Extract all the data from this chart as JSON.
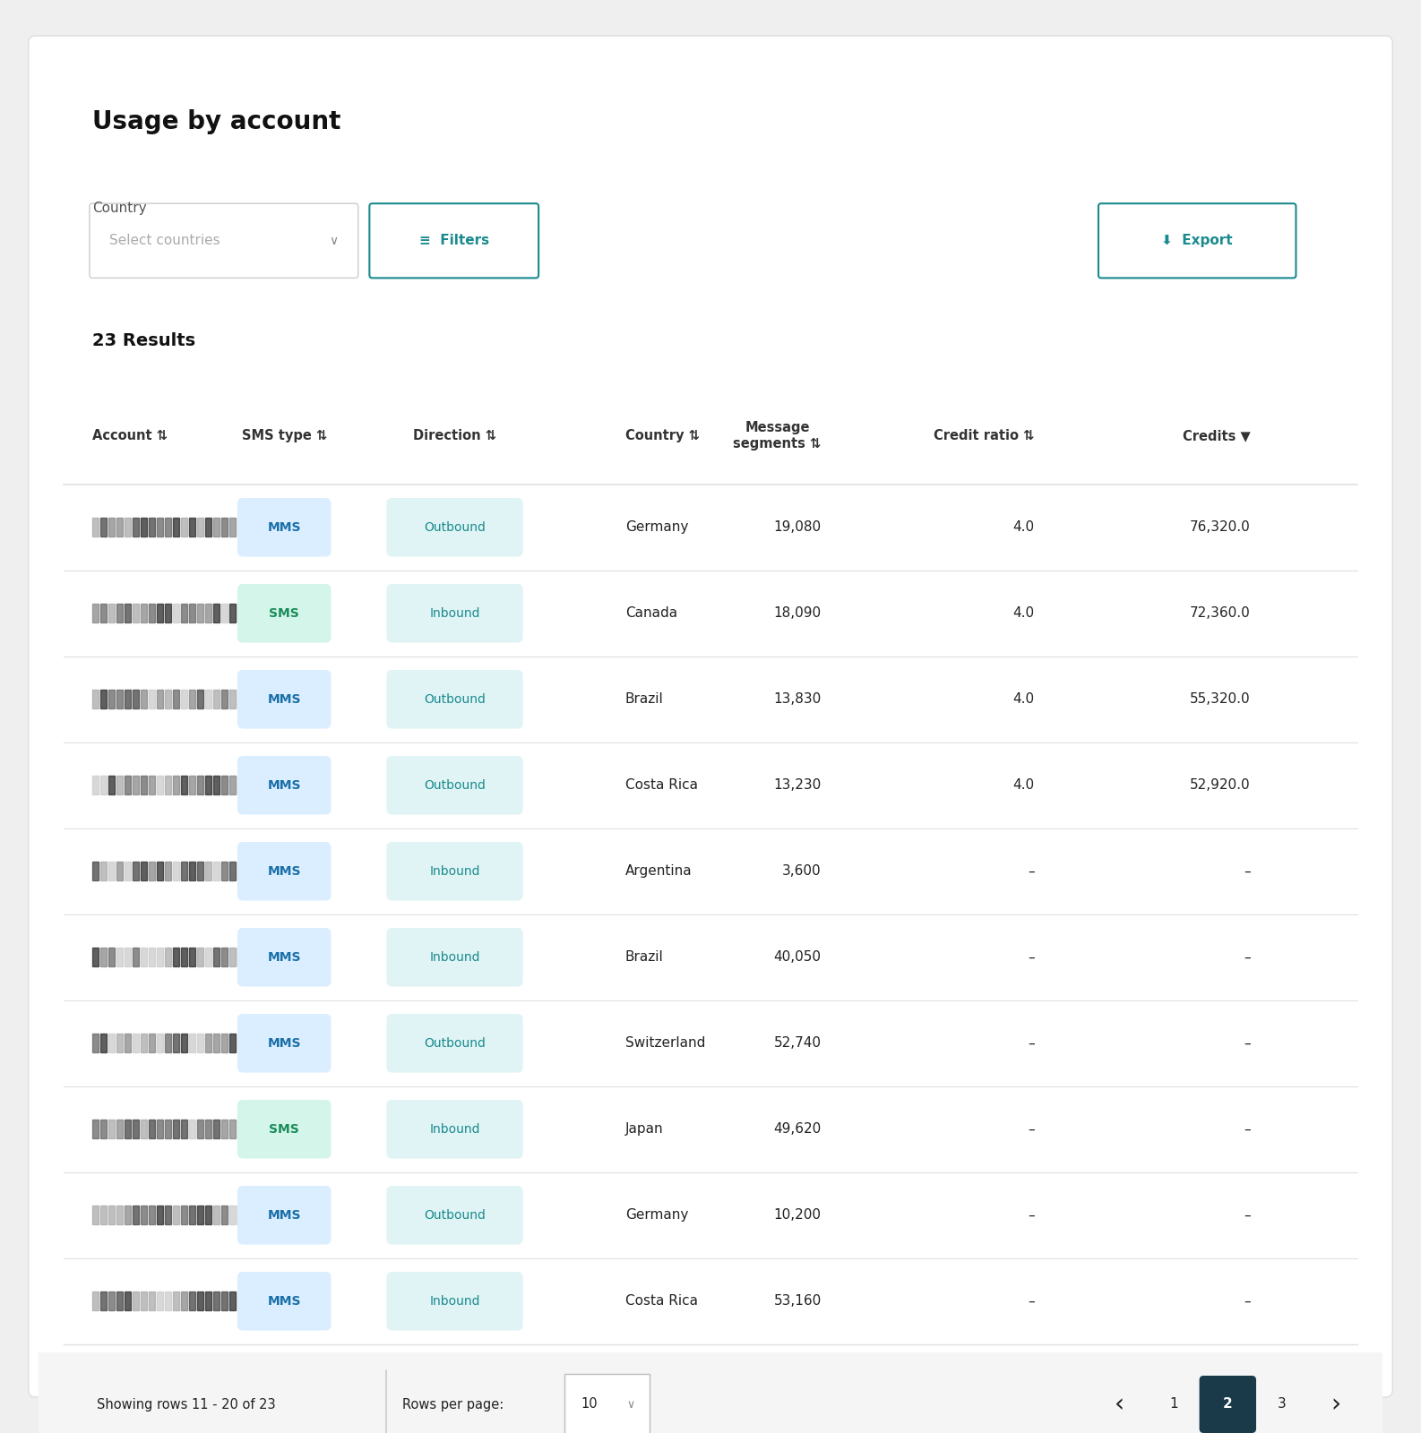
{
  "title": "Usage by account",
  "results_count": "23 Results",
  "country_label": "Country",
  "select_placeholder": "Select countries",
  "filters_btn": "Filters",
  "export_btn": "Export",
  "showing_text": "Showing rows 11 - 20 of 23",
  "rows_per_page": "Rows per page:",
  "rows_per_page_val": "10",
  "page_current": 2,
  "page_total": 3,
  "columns": [
    "Account",
    "SMS type",
    "Direction",
    "Country",
    "Message\nsegments",
    "Credit ratio",
    "Credits"
  ],
  "col_align": [
    "left",
    "center",
    "center",
    "left",
    "right",
    "right",
    "right"
  ],
  "rows": [
    {
      "sms_type": "MMS",
      "direction": "Outbound",
      "country": "Germany",
      "segments": "19,080",
      "credit_ratio": "4.0",
      "credits": "76,320.0"
    },
    {
      "sms_type": "SMS",
      "direction": "Inbound",
      "country": "Canada",
      "segments": "18,090",
      "credit_ratio": "4.0",
      "credits": "72,360.0"
    },
    {
      "sms_type": "MMS",
      "direction": "Outbound",
      "country": "Brazil",
      "segments": "13,830",
      "credit_ratio": "4.0",
      "credits": "55,320.0"
    },
    {
      "sms_type": "MMS",
      "direction": "Outbound",
      "country": "Costa Rica",
      "segments": "13,230",
      "credit_ratio": "4.0",
      "credits": "52,920.0"
    },
    {
      "sms_type": "MMS",
      "direction": "Inbound",
      "country": "Argentina",
      "segments": "3,600",
      "credit_ratio": "–",
      "credits": "–"
    },
    {
      "sms_type": "MMS",
      "direction": "Inbound",
      "country": "Brazil",
      "segments": "40,050",
      "credit_ratio": "–",
      "credits": "–"
    },
    {
      "sms_type": "MMS",
      "direction": "Outbound",
      "country": "Switzerland",
      "segments": "52,740",
      "credit_ratio": "–",
      "credits": "–"
    },
    {
      "sms_type": "SMS",
      "direction": "Inbound",
      "country": "Japan",
      "segments": "49,620",
      "credit_ratio": "–",
      "credits": "–"
    },
    {
      "sms_type": "MMS",
      "direction": "Outbound",
      "country": "Germany",
      "segments": "10,200",
      "credit_ratio": "–",
      "credits": "–"
    },
    {
      "sms_type": "MMS",
      "direction": "Inbound",
      "country": "Costa Rica",
      "segments": "53,160",
      "credit_ratio": "–",
      "credits": "–"
    }
  ],
  "mms_bg": "#dbeeff",
  "mms_text": "#1a6fa8",
  "sms_bg": "#d4f5e9",
  "sms_text": "#1a8c5a",
  "outbound_bg": "#e0f4f5",
  "outbound_text": "#1a8a8e",
  "inbound_bg": "#e0f4f5",
  "inbound_text": "#1a8a8e",
  "divider_color": "#e0e0e0",
  "outer_bg": "#efefef",
  "card_bg": "#ffffff",
  "title_color": "#111111",
  "label_color": "#555555",
  "placeholder_color": "#aaaaaa",
  "teal_color": "#1a8a8e",
  "footer_bg": "#f5f5f5",
  "text_color": "#222222",
  "header_text_color": "#333333",
  "page_btn_bg": "#1a3a4a",
  "page_btn_text": "#ffffff"
}
